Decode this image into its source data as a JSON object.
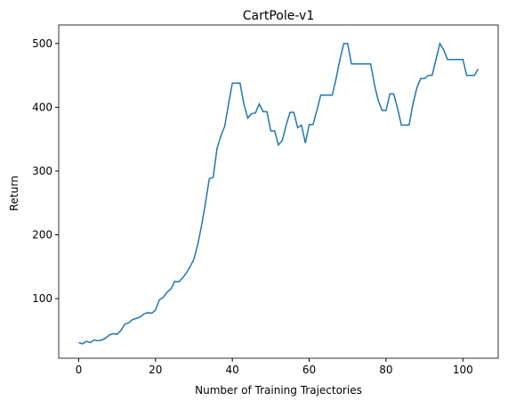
{
  "chart_data": {
    "type": "line",
    "title": "CartPole-v1",
    "xlabel": "Number of Training Trajectories",
    "ylabel": "Return",
    "x": [
      0,
      1,
      2,
      3,
      4,
      5,
      6,
      7,
      8,
      9,
      10,
      11,
      12,
      13,
      14,
      15,
      16,
      17,
      18,
      19,
      20,
      21,
      22,
      23,
      24,
      25,
      26,
      27,
      28,
      29,
      30,
      31,
      32,
      33,
      34,
      35,
      36,
      37,
      38,
      39,
      40,
      41,
      42,
      43,
      44,
      45,
      46,
      47,
      48,
      49,
      50,
      51,
      52,
      53,
      54,
      55,
      56,
      57,
      58,
      59,
      60,
      61,
      62,
      63,
      64,
      65,
      66,
      67,
      68,
      69,
      70,
      71,
      72,
      73,
      74,
      75,
      76,
      77,
      78,
      79,
      80,
      81,
      82,
      83,
      84,
      85,
      86,
      87,
      88,
      89,
      90,
      91,
      92,
      93,
      94,
      95,
      96,
      97,
      98,
      99,
      100,
      101,
      102,
      103,
      104
    ],
    "series": [
      {
        "name": "Return",
        "color": "#1f77b4",
        "values": [
          31,
          29,
          33,
          31,
          35,
          34,
          35,
          38,
          43,
          45,
          44,
          50,
          60,
          62,
          67,
          69,
          71,
          76,
          78,
          77,
          82,
          98,
          102,
          110,
          115,
          127,
          126,
          132,
          140,
          150,
          162,
          185,
          215,
          250,
          288,
          290,
          335,
          355,
          370,
          405,
          438,
          438,
          438,
          405,
          383,
          390,
          391,
          405,
          393,
          393,
          363,
          363,
          341,
          348,
          372,
          392,
          392,
          368,
          372,
          344,
          373,
          373,
          395,
          419,
          419,
          419,
          419,
          445,
          475,
          500,
          500,
          468,
          468,
          468,
          468,
          468,
          468,
          435,
          410,
          395,
          395,
          421,
          421,
          398,
          372,
          372,
          372,
          405,
          430,
          445,
          445,
          450,
          450,
          475,
          500,
          490,
          475,
          475,
          475,
          475,
          475,
          450,
          450,
          450,
          460
        ]
      }
    ],
    "xlim": [
      -5.2,
      109.2
    ],
    "ylim": [
      6.5,
      523.5
    ],
    "xticks": [
      0,
      20,
      40,
      60,
      80,
      100
    ],
    "yticks": [
      100,
      200,
      300,
      400,
      500
    ]
  }
}
